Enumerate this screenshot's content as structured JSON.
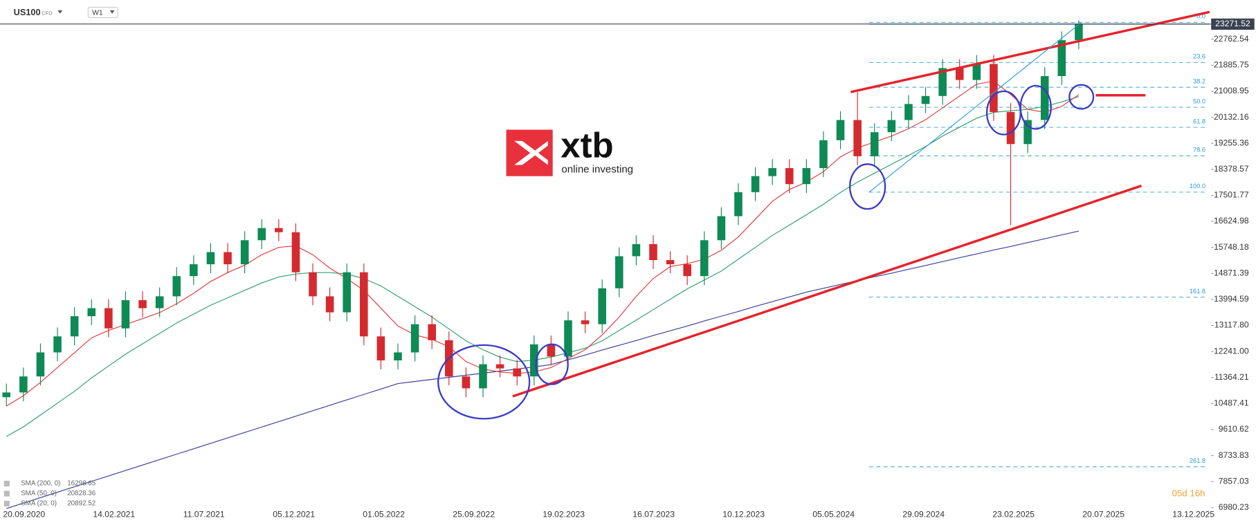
{
  "header": {
    "symbol": "US100",
    "instrument_type": "CFD",
    "interval": "W1"
  },
  "countdown": "05d 16h",
  "logo": {
    "brand": "xtb",
    "tagline": "online investing"
  },
  "chart_data": {
    "type": "candlestick",
    "x_labels": [
      "20.09.2020",
      "14.02.2021",
      "11.07.2021",
      "05.12.2021",
      "01.05.2022",
      "25.09.2022",
      "19.02.2023",
      "16.07.2023",
      "10.12.2023",
      "05.05.2024",
      "29.09.2024",
      "23.02.2025",
      "20.07.2025",
      "13.12.2025"
    ],
    "candles": {
      "open": [
        10700,
        10860,
        11400,
        12210,
        12750,
        13430,
        13700,
        13020,
        13970,
        13700,
        14100,
        14780,
        15180,
        15590,
        15180,
        15990,
        16400,
        16260,
        14910,
        14100,
        13560,
        14910,
        12750,
        11940,
        12210,
        13160,
        12620,
        11400,
        11000,
        11810,
        11670,
        11400,
        12480,
        12070,
        13290,
        13160,
        14370,
        15450,
        15860,
        15320,
        15180,
        14780,
        15990,
        16800,
        17610,
        18150,
        18420,
        17880,
        18420,
        19360,
        20040,
        18820,
        19630,
        20040,
        20580,
        20850,
        21790,
        21390,
        21930,
        20310,
        19230,
        20040,
        21520,
        22730
      ],
      "high": [
        11160,
        11700,
        12510,
        13050,
        13730,
        14000,
        14000,
        14270,
        14270,
        14400,
        15080,
        15480,
        15890,
        15890,
        16290,
        16700,
        16700,
        16560,
        15210,
        14400,
        15210,
        15210,
        13050,
        12510,
        13460,
        13460,
        12920,
        11700,
        12110,
        12110,
        11970,
        12780,
        12780,
        13590,
        13590,
        14670,
        15750,
        16160,
        16160,
        15620,
        15480,
        16290,
        17100,
        17910,
        18450,
        18720,
        18720,
        18720,
        19660,
        20340,
        20980,
        19930,
        20340,
        20880,
        21150,
        22090,
        22090,
        22230,
        22230,
        20610,
        20340,
        21820,
        23030,
        23400
      ],
      "low": [
        10400,
        10560,
        11100,
        11910,
        12450,
        13130,
        12720,
        12720,
        13400,
        13400,
        13800,
        14480,
        14880,
        14880,
        14880,
        15690,
        15960,
        14610,
        13800,
        13260,
        13260,
        12450,
        11640,
        11640,
        11910,
        12320,
        11100,
        10700,
        10700,
        11370,
        11100,
        11100,
        11770,
        11770,
        12860,
        12860,
        14070,
        15150,
        15020,
        14880,
        14480,
        14480,
        15690,
        16500,
        17310,
        17850,
        17580,
        17580,
        18120,
        19060,
        18520,
        18520,
        19330,
        19740,
        20280,
        20550,
        21090,
        21090,
        20010,
        16500,
        18930,
        19740,
        21220,
        22430
      ],
      "close": [
        10860,
        11400,
        12210,
        12750,
        13430,
        13700,
        13020,
        13970,
        13700,
        14100,
        14780,
        15180,
        15590,
        15180,
        15990,
        16400,
        16260,
        14910,
        14100,
        13560,
        14910,
        12750,
        11940,
        12210,
        13160,
        12620,
        11400,
        11000,
        11810,
        11670,
        11400,
        12480,
        12070,
        13290,
        13160,
        14370,
        15450,
        15860,
        15320,
        15180,
        14780,
        15990,
        16800,
        17610,
        18150,
        18420,
        17880,
        18420,
        19360,
        20040,
        18820,
        19630,
        20040,
        20580,
        20850,
        21790,
        21390,
        21930,
        20310,
        19230,
        20040,
        21520,
        22730,
        23271.52
      ]
    },
    "up_color": "#0e8a55",
    "down_color": "#d42a2f",
    "series": [
      {
        "name": "SMA (200, 0)",
        "color": "#3b3f99",
        "values": [
          6950,
          7133,
          7316,
          7499,
          7682,
          7865,
          8048,
          8231,
          8414,
          8597,
          8780,
          8963,
          9146,
          9329,
          9512,
          9695,
          9878,
          10061,
          10244,
          10427,
          10610,
          10793,
          10976,
          11159,
          11230,
          11300,
          11370,
          11440,
          11510,
          11580,
          11650,
          11720,
          11800,
          11960,
          12120,
          12290,
          12450,
          12610,
          12780,
          12940,
          13100,
          13270,
          13430,
          13590,
          13760,
          13920,
          14080,
          14240,
          14370,
          14500,
          14630,
          14760,
          14880,
          15010,
          15140,
          15270,
          15400,
          15530,
          15660,
          15780,
          15910,
          16040,
          16170,
          16298.65
        ]
      },
      {
        "name": "SMA (50, 0)",
        "color": "#2e9e6f",
        "values": [
          9380,
          9700,
          10100,
          10500,
          10900,
          11350,
          11750,
          12150,
          12500,
          12850,
          13200,
          13500,
          13800,
          14050,
          14300,
          14550,
          14750,
          14850,
          14900,
          14900,
          14850,
          14700,
          14450,
          14100,
          13750,
          13400,
          13000,
          12600,
          12300,
          12050,
          11900,
          11950,
          12050,
          12200,
          12350,
          12600,
          12950,
          13300,
          13650,
          14000,
          14350,
          14650,
          14950,
          15350,
          15750,
          16150,
          16500,
          16850,
          17200,
          17600,
          17950,
          18250,
          18550,
          18850,
          19150,
          19500,
          19800,
          20100,
          20300,
          20350,
          20400,
          20500,
          20650,
          20828.36
        ]
      },
      {
        "name": "SMA (20, 0)",
        "color": "#e23b3b",
        "values": [
          10400,
          10750,
          11200,
          11700,
          12200,
          12700,
          12950,
          13150,
          13350,
          13550,
          13850,
          14200,
          14600,
          14900,
          15150,
          15500,
          15750,
          15800,
          15500,
          15050,
          14700,
          14300,
          13700,
          13100,
          12800,
          12650,
          12400,
          11900,
          11650,
          11550,
          11500,
          11550,
          11700,
          12000,
          12300,
          12800,
          13400,
          14100,
          14700,
          15100,
          15200,
          15350,
          15650,
          16100,
          16700,
          17300,
          17700,
          17950,
          18300,
          18800,
          19100,
          19300,
          19500,
          19750,
          20050,
          20450,
          20850,
          21250,
          21350,
          20900,
          20400,
          20300,
          20500,
          20892.52
        ]
      }
    ],
    "ylim": [
      6682.6,
      24084.5
    ],
    "yticks": [
      22762.54,
      21885.75,
      21008.95,
      20132.16,
      19255.36,
      18378.57,
      17501.77,
      16624.98,
      15748.18,
      14871.39,
      13994.59,
      {
        "value": 13117.8,
        "label": "13117.80"
      },
      {
        "value": 12241,
        "label": "12241.00"
      },
      11364.21,
      10487.41,
      9610.62,
      8733.83,
      7857.03,
      6980.23
    ],
    "fibonacci": {
      "start": 23330,
      "end": 17610,
      "color": "#2d9cdb",
      "levels": [
        {
          "value": 0,
          "label": "0.0"
        },
        23.6,
        38.2,
        {
          "value": 50,
          "label": "50.0"
        },
        61.8,
        78.6,
        {
          "value": 100,
          "label": "100.0"
        },
        161.8,
        261.8
      ]
    }
  }
}
